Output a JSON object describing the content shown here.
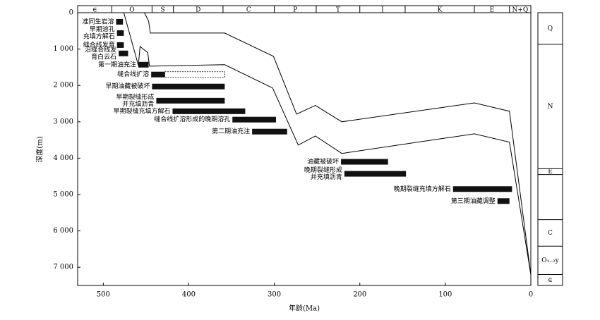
{
  "chart_data": {
    "type": "burial-history",
    "xlabel": "年龄(Ma)",
    "ylabel": "深度(m)",
    "xlim": [
      530,
      0
    ],
    "xticks": [
      500,
      400,
      300,
      200,
      100,
      0
    ],
    "ylim": [
      0,
      7500
    ],
    "yticks": [
      0,
      {
        "value": 1000,
        "label": "1 000"
      },
      {
        "value": 2000,
        "label": "2 000"
      },
      {
        "value": 3000,
        "label": "3 000"
      },
      {
        "value": 4000,
        "label": "4 000"
      },
      {
        "value": 5000,
        "label": "5 000"
      },
      {
        "value": 6000,
        "label": "6 000"
      },
      {
        "value": 7000,
        "label": "7 000"
      }
    ],
    "periods": [
      {
        "label": "∈",
        "start": 530,
        "end": 490
      },
      {
        "label": "O",
        "start": 490,
        "end": 443
      },
      {
        "label": "S",
        "start": 443,
        "end": 418
      },
      {
        "label": "D",
        "start": 418,
        "end": 360
      },
      {
        "label": "C",
        "start": 360,
        "end": 300
      },
      {
        "label": "P",
        "start": 300,
        "end": 251
      },
      {
        "label": "T",
        "start": 251,
        "end": 200
      },
      {
        "label": "J",
        "start": 200,
        "end": 147
      },
      {
        "label": "K",
        "start": 147,
        "end": 66
      },
      {
        "label": "E",
        "start": 66,
        "end": 25
      },
      {
        "label": "N+Q",
        "start": 25,
        "end": 0
      }
    ],
    "column": [
      {
        "label": "Q",
        "top": 0,
        "bottom": 870
      },
      {
        "label": "N",
        "top": 870,
        "bottom": 4290
      },
      {
        "label": "E",
        "top": 4290,
        "bottom": 4450
      },
      {
        "label": null,
        "top": 4450,
        "bottom": 5690
      },
      {
        "label": "C",
        "top": 5690,
        "bottom": 6420
      },
      {
        "label": "O₁₋₂y",
        "top": 6420,
        "bottom": 7200
      },
      {
        "label": "∈",
        "top": 7200,
        "bottom": 7500
      }
    ],
    "curves": [
      {
        "x": [
          452,
          447,
          445,
          358,
          301,
          274,
          252,
          221,
          66,
          25,
          0
        ],
        "values": [
          0,
          230,
          560,
          560,
          1200,
          2790,
          2550,
          3000,
          2480,
          2710,
          7200
        ]
      },
      {
        "x": [
          476,
          459,
          457,
          448,
          446,
          358,
          302,
          272,
          252,
          221,
          66,
          25,
          0
        ],
        "values": [
          0,
          1450,
          930,
          1100,
          1470,
          1430,
          2070,
          3640,
          3390,
          3870,
          3330,
          3560,
          7200
        ]
      }
    ],
    "events": [
      {
        "label": [
          "准同生岩溶"
        ],
        "start": 485,
        "end": 477,
        "depth": 250
      },
      {
        "label": [
          "早期溶孔",
          "充填方解石"
        ],
        "start": 484,
        "end": 476,
        "depth": 560
      },
      {
        "label": [
          "缝合线发育"
        ],
        "start": 484,
        "end": 476,
        "depth": 890
      },
      {
        "label": [
          "沿缝合线发",
          "育白云石"
        ],
        "start": 482,
        "end": 471,
        "depth": 1120
      },
      {
        "label": [
          "第一期油充注"
        ],
        "start": 459,
        "end": 447,
        "depth": 1430
      },
      {
        "label": [
          "缝合线扩溶"
        ],
        "start": 444,
        "end": 358,
        "dashed_from": 428,
        "depth": 1700
      },
      {
        "label": [
          "早期油藏被破坏"
        ],
        "start": 443,
        "end": 358,
        "depth": 2030
      },
      {
        "label": [
          "早期裂缝形成",
          "并充填沥青"
        ],
        "start": 438,
        "end": 358,
        "depth": 2420
      },
      {
        "label": [
          "早期裂缝充填方解石"
        ],
        "start": 419,
        "end": 334,
        "depth": 2710
      },
      {
        "label": [
          "缝合线扩溶形成的晚期溶孔"
        ],
        "start": 349,
        "end": 298,
        "depth": 2940
      },
      {
        "label": [
          "第二期油充注"
        ],
        "start": 326,
        "end": 285,
        "depth": 3270
      },
      {
        "label": [
          "油藏被破坏"
        ],
        "start": 222,
        "end": 167,
        "depth": 4100
      },
      {
        "label": [
          "晚期裂缝形成",
          "并充填沥青"
        ],
        "start": 218,
        "end": 146,
        "depth": 4430
      },
      {
        "label": [
          "晚期裂缝充填方解石"
        ],
        "start": 91,
        "end": 22,
        "depth": 4850
      },
      {
        "label": [
          "第三期油藏调整"
        ],
        "start": 39,
        "end": 25,
        "depth": 5180
      }
    ]
  }
}
